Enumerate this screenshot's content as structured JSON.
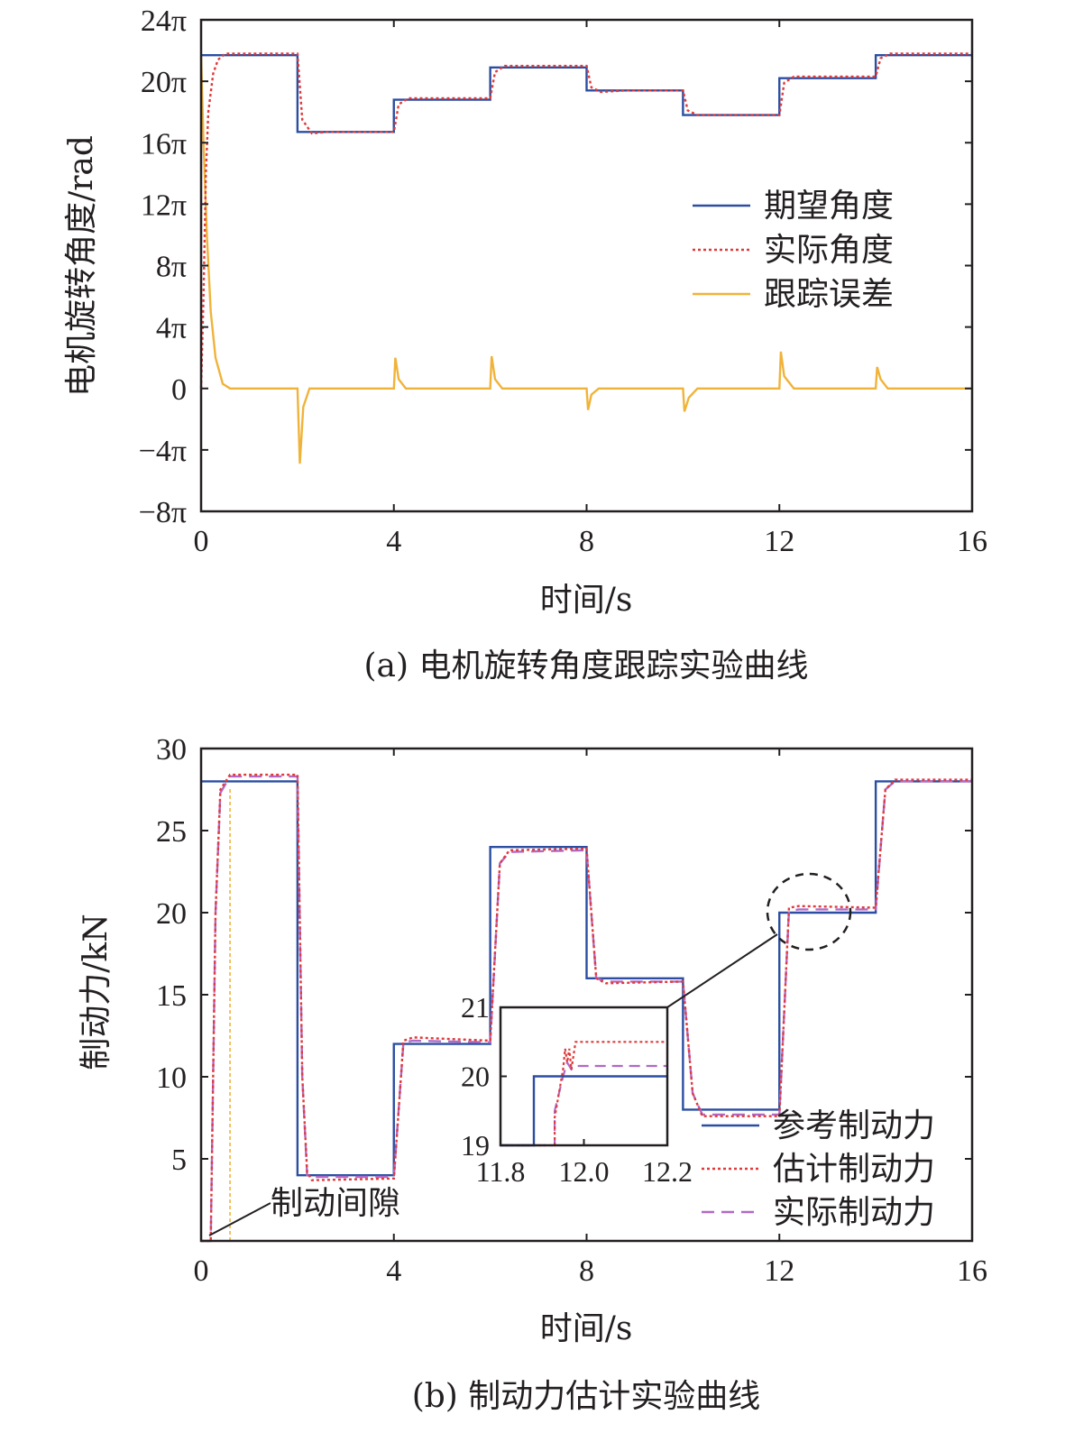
{
  "colors": {
    "desired": "#2b4ea2",
    "actual": "#e03a3a",
    "error": "#f0b33a",
    "real_force": "#b06ac8",
    "frame": "#231f20"
  },
  "chart_data": [
    {
      "type": "line",
      "caption": "(a) 电机旋转角度跟踪实验曲线",
      "xlabel": "时间/s",
      "ylabel": "电机旋转角度/rad",
      "xlim": [
        0,
        16
      ],
      "ylim_pi": [
        -8,
        24
      ],
      "x_ticks": [
        {
          "value": 0,
          "label": "0"
        },
        {
          "value": 4,
          "label": "4"
        },
        {
          "value": 8,
          "label": "8"
        },
        {
          "value": 12,
          "label": "12"
        },
        {
          "value": 16,
          "label": "16"
        }
      ],
      "y_ticks": [
        {
          "value": 24,
          "label": "24π"
        },
        {
          "value": 20,
          "label": "20π"
        },
        {
          "value": 16,
          "label": "16π"
        },
        {
          "value": 12,
          "label": "12π"
        },
        {
          "value": 8,
          "label": "8π"
        },
        {
          "value": 4,
          "label": "4π"
        },
        {
          "value": 0,
          "label": "0"
        },
        {
          "value": -4,
          "label": "−4π"
        },
        {
          "value": -8,
          "label": "−8π"
        }
      ],
      "legend_position": "center-right",
      "series": [
        {
          "name": "期望角度",
          "style": "solid",
          "steps": [
            {
              "x0": 0,
              "x1": 2,
              "y": 21.7
            },
            {
              "x0": 2,
              "x1": 4,
              "y": 16.7
            },
            {
              "x0": 4,
              "x1": 6,
              "y": 18.8
            },
            {
              "x0": 6,
              "x1": 8,
              "y": 20.9
            },
            {
              "x0": 8,
              "x1": 10,
              "y": 19.4
            },
            {
              "x0": 10,
              "x1": 12,
              "y": 17.8
            },
            {
              "x0": 12,
              "x1": 14,
              "y": 20.2
            },
            {
              "x0": 14,
              "x1": 16,
              "y": 21.7
            }
          ]
        },
        {
          "name": "实际角度",
          "style": "dotted",
          "points": [
            [
              0,
              0
            ],
            [
              0.05,
              6
            ],
            [
              0.1,
              14
            ],
            [
              0.15,
              18
            ],
            [
              0.25,
              20.5
            ],
            [
              0.35,
              21.4
            ],
            [
              0.5,
              21.8
            ],
            [
              2,
              21.8
            ],
            [
              2.1,
              17.5
            ],
            [
              2.3,
              16.6
            ],
            [
              2.6,
              16.7
            ],
            [
              4,
              16.7
            ],
            [
              4.1,
              18.5
            ],
            [
              4.3,
              18.9
            ],
            [
              6,
              18.9
            ],
            [
              6.1,
              20.6
            ],
            [
              6.3,
              21.0
            ],
            [
              8,
              21.0
            ],
            [
              8.1,
              19.6
            ],
            [
              8.3,
              19.3
            ],
            [
              8.8,
              19.4
            ],
            [
              10,
              19.4
            ],
            [
              10.1,
              18.1
            ],
            [
              10.3,
              17.8
            ],
            [
              12,
              17.8
            ],
            [
              12.1,
              19.9
            ],
            [
              12.3,
              20.3
            ],
            [
              14,
              20.3
            ],
            [
              14.1,
              21.5
            ],
            [
              14.3,
              21.8
            ],
            [
              16,
              21.8
            ]
          ]
        },
        {
          "name": "跟踪误差",
          "style": "solid",
          "points": [
            [
              0,
              21.7
            ],
            [
              0.05,
              16
            ],
            [
              0.12,
              10
            ],
            [
              0.2,
              5
            ],
            [
              0.3,
              2
            ],
            [
              0.45,
              0.3
            ],
            [
              0.6,
              0
            ],
            [
              2.0,
              0
            ],
            [
              2.05,
              -4.9
            ],
            [
              2.12,
              -1.2
            ],
            [
              2.25,
              0
            ],
            [
              4.0,
              0
            ],
            [
              4.03,
              2.0
            ],
            [
              4.1,
              0.6
            ],
            [
              4.25,
              0
            ],
            [
              6.0,
              0
            ],
            [
              6.03,
              2.1
            ],
            [
              6.1,
              0.6
            ],
            [
              6.25,
              0
            ],
            [
              8.0,
              0
            ],
            [
              8.03,
              -1.4
            ],
            [
              8.1,
              -0.4
            ],
            [
              8.25,
              0
            ],
            [
              10.0,
              0
            ],
            [
              10.03,
              -1.5
            ],
            [
              10.12,
              -0.6
            ],
            [
              10.3,
              0
            ],
            [
              12.0,
              0
            ],
            [
              12.03,
              2.4
            ],
            [
              12.1,
              0.8
            ],
            [
              12.3,
              0
            ],
            [
              14.0,
              0
            ],
            [
              14.03,
              1.4
            ],
            [
              14.1,
              0.6
            ],
            [
              14.25,
              0
            ],
            [
              16,
              0
            ]
          ]
        }
      ]
    },
    {
      "type": "line",
      "caption": "(b) 制动力估计实验曲线",
      "xlabel": "时间/s",
      "ylabel": "制动力/kN",
      "xlim": [
        0,
        16
      ],
      "ylim": [
        0,
        30
      ],
      "x_ticks": [
        {
          "value": 0,
          "label": "0"
        },
        {
          "value": 4,
          "label": "4"
        },
        {
          "value": 8,
          "label": "8"
        },
        {
          "value": 12,
          "label": "12"
        },
        {
          "value": 16,
          "label": "16"
        }
      ],
      "y_ticks": [
        {
          "value": 30,
          "label": "30"
        },
        {
          "value": 25,
          "label": "25"
        },
        {
          "value": 20,
          "label": "20"
        },
        {
          "value": 15,
          "label": "15"
        },
        {
          "value": 10,
          "label": "10"
        },
        {
          "value": 5,
          "label": "5"
        }
      ],
      "legend_position": "bottom-right",
      "annotation": "制动间隙",
      "series": [
        {
          "name": "参考制动力",
          "style": "solid",
          "steps": [
            {
              "x0": 0,
              "x1": 2,
              "y": 28
            },
            {
              "x0": 2,
              "x1": 4,
              "y": 4
            },
            {
              "x0": 4,
              "x1": 6,
              "y": 12
            },
            {
              "x0": 6,
              "x1": 8,
              "y": 24
            },
            {
              "x0": 8,
              "x1": 10,
              "y": 16
            },
            {
              "x0": 10,
              "x1": 12,
              "y": 8
            },
            {
              "x0": 12,
              "x1": 14,
              "y": 20
            },
            {
              "x0": 14,
              "x1": 16,
              "y": 28
            }
          ]
        },
        {
          "name": "估计制动力",
          "style": "dotted",
          "points": [
            [
              0,
              0
            ],
            [
              0.2,
              0
            ],
            [
              0.3,
              20
            ],
            [
              0.4,
              27.5
            ],
            [
              0.6,
              28.4
            ],
            [
              2.0,
              28.4
            ],
            [
              2.1,
              10
            ],
            [
              2.2,
              4.2
            ],
            [
              2.3,
              3.7
            ],
            [
              4.0,
              3.8
            ],
            [
              4.2,
              12.2
            ],
            [
              4.4,
              12.4
            ],
            [
              6.0,
              12.2
            ],
            [
              6.2,
              23
            ],
            [
              6.4,
              23.8
            ],
            [
              8.0,
              23.9
            ],
            [
              8.2,
              16
            ],
            [
              8.4,
              15.7
            ],
            [
              10.0,
              15.8
            ],
            [
              10.2,
              9
            ],
            [
              10.4,
              7.6
            ],
            [
              12.0,
              7.6
            ],
            [
              12.2,
              20.3
            ],
            [
              12.4,
              20.4
            ],
            [
              14.0,
              20.3
            ],
            [
              14.2,
              27.5
            ],
            [
              14.4,
              28.1
            ],
            [
              16,
              28.1
            ]
          ]
        },
        {
          "name": "实际制动力",
          "style": "dashed",
          "points": [
            [
              0,
              0
            ],
            [
              0.2,
              0
            ],
            [
              0.3,
              20
            ],
            [
              0.4,
              27.3
            ],
            [
              0.6,
              28.3
            ],
            [
              2.0,
              28.3
            ],
            [
              2.1,
              10
            ],
            [
              2.2,
              4.0
            ],
            [
              2.3,
              3.9
            ],
            [
              4.0,
              3.9
            ],
            [
              4.2,
              12.1
            ],
            [
              4.4,
              12.2
            ],
            [
              6.0,
              12.1
            ],
            [
              6.2,
              23
            ],
            [
              6.4,
              23.7
            ],
            [
              8.0,
              23.8
            ],
            [
              8.2,
              16
            ],
            [
              8.4,
              15.8
            ],
            [
              10.0,
              15.8
            ],
            [
              10.2,
              9
            ],
            [
              10.4,
              7.7
            ],
            [
              12.0,
              7.7
            ],
            [
              12.2,
              20.1
            ],
            [
              12.4,
              20.2
            ],
            [
              14.0,
              20.2
            ],
            [
              14.2,
              27.5
            ],
            [
              14.4,
              28.0
            ],
            [
              16,
              28.0
            ]
          ]
        }
      ],
      "inset": {
        "xlim": [
          11.8,
          12.2
        ],
        "ylim": [
          19,
          21
        ],
        "x_ticks": [
          {
            "value": 11.8,
            "label": "11.8"
          },
          {
            "value": 12.0,
            "label": "12.0"
          },
          {
            "value": 12.2,
            "label": "12.2"
          }
        ],
        "y_ticks": [
          {
            "value": 21,
            "label": "21"
          },
          {
            "value": 20,
            "label": "20"
          },
          {
            "value": 19,
            "label": "19"
          }
        ],
        "reference": [
          [
            11.8,
            19
          ],
          [
            11.88,
            19
          ],
          [
            11.88,
            20
          ],
          [
            12.2,
            20
          ]
        ],
        "estimated": [
          [
            11.8,
            19
          ],
          [
            11.93,
            19
          ],
          [
            11.93,
            19.4
          ],
          [
            11.95,
            20.1
          ],
          [
            11.955,
            20.4
          ],
          [
            11.96,
            20.2
          ],
          [
            11.965,
            20.4
          ],
          [
            11.97,
            20.1
          ],
          [
            11.98,
            20.5
          ],
          [
            12.2,
            20.5
          ]
        ],
        "real": [
          [
            11.8,
            19
          ],
          [
            11.93,
            19
          ],
          [
            11.93,
            19.5
          ],
          [
            11.95,
            20.0
          ],
          [
            11.96,
            20.2
          ],
          [
            11.97,
            20.1
          ],
          [
            11.98,
            20.15
          ],
          [
            12.2,
            20.15
          ]
        ]
      }
    }
  ]
}
